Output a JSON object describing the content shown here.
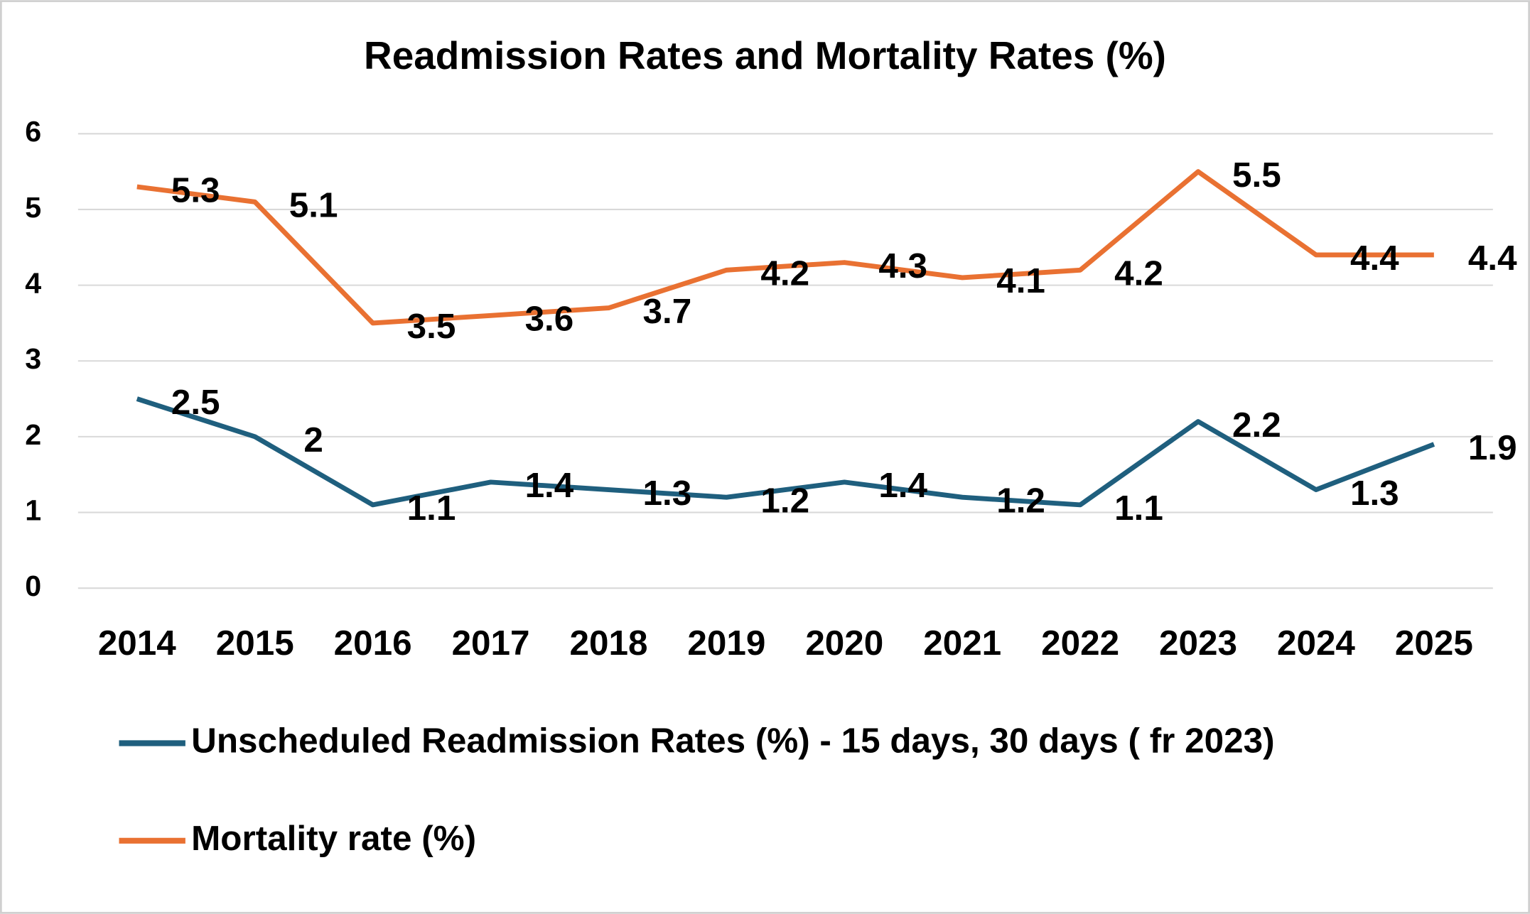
{
  "chart_data": {
    "type": "line",
    "title": "Readmission Rates and Mortality Rates (%)",
    "categories": [
      "2014",
      "2015",
      "2016",
      "2017",
      "2018",
      "2019",
      "2020",
      "2021",
      "2022",
      "2023",
      "2024",
      "2025"
    ],
    "series": [
      {
        "name": "Unscheduled Readmission Rates (%) - 15 days, 30 days ( fr 2023)",
        "color": "#1f5f7e",
        "values": [
          2.5,
          2,
          1.1,
          1.4,
          1.3,
          1.2,
          1.4,
          1.2,
          1.1,
          2.2,
          1.3,
          1.9
        ]
      },
      {
        "name": "Mortality rate (%)",
        "color": "#e97132",
        "values": [
          5.3,
          5.1,
          3.5,
          3.6,
          3.7,
          4.2,
          4.3,
          4.1,
          4.2,
          5.5,
          4.4,
          4.4
        ]
      }
    ],
    "ylim": [
      0,
      6
    ],
    "yticks": [
      0,
      1,
      2,
      3,
      4,
      5,
      6
    ],
    "grid": true,
    "legend": "bottom"
  }
}
